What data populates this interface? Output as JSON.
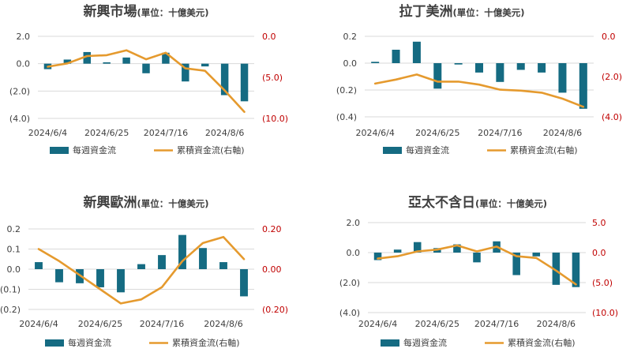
{
  "colors": {
    "bar": "#156b82",
    "line": "#e59a2e",
    "grid": "#d9d9d9",
    "right_axis_text": "#c00000",
    "text": "#404040"
  },
  "chart_data": [
    {
      "type": "bar+line",
      "title": "新興市場",
      "title_unit": "(單位：十億美元)",
      "legend": {
        "bar": "每週資金流",
        "line": "累積資金流(右軸)",
        "placement": "bottom"
      },
      "x_labels": [
        "2024/6/4",
        "2024/6/25",
        "2024/7/16",
        "2024/8/6"
      ],
      "x_label_positions": [
        0,
        3,
        6,
        9
      ],
      "left_ticks": [
        "2.0",
        "0.0",
        "(2.0)",
        "(4.0)"
      ],
      "right_ticks": [
        "0.0",
        "(5.0)",
        "(10.0)"
      ],
      "ylim_left": [
        -4,
        2
      ],
      "ylim_right": [
        -10,
        0
      ],
      "weekly": [
        -0.4,
        0.3,
        0.85,
        0.1,
        0.45,
        -0.7,
        0.8,
        -1.3,
        -0.2,
        -2.3,
        -2.75
      ],
      "cumulative": [
        -3.7,
        -3.3,
        -2.4,
        -2.3,
        -1.7,
        -2.8,
        -2.0,
        -3.9,
        -4.2,
        -6.6,
        -9.2
      ]
    },
    {
      "type": "bar+line",
      "title": "拉丁美洲",
      "title_unit": "(單位：十億美元)",
      "legend": {
        "bar": "每週資金流",
        "line": "累積資金流(右軸)",
        "placement": "bottom"
      },
      "x_labels": [
        "2024/6/4",
        "2024/6/25",
        "2024/7/16",
        "2024/8/6"
      ],
      "x_label_positions": [
        0,
        3,
        6,
        9
      ],
      "left_ticks": [
        "0.2",
        "0.0",
        "(0.2)",
        "(0.4)"
      ],
      "right_ticks": [
        "0.0",
        "(2.0)",
        "(4.0)"
      ],
      "ylim_left": [
        -0.4,
        0.2
      ],
      "ylim_right": [
        -4,
        0
      ],
      "weekly": [
        0.01,
        0.1,
        0.16,
        -0.19,
        -0.01,
        -0.07,
        -0.14,
        -0.05,
        -0.07,
        -0.22,
        -0.34
      ],
      "cumulative": [
        -2.35,
        -2.15,
        -1.9,
        -2.25,
        -2.25,
        -2.4,
        -2.65,
        -2.7,
        -2.8,
        -3.1,
        -3.5
      ]
    },
    {
      "type": "bar+line",
      "title": "新興歐洲",
      "title_unit": "(單位：十億美元)",
      "legend": {
        "bar": "每週資金流",
        "line": "累積資金流(右軸)",
        "placement": "bottom"
      },
      "x_labels": [
        "2024/6/4",
        "2024/6/25",
        "2024/7/16",
        "2024/8/6"
      ],
      "x_label_positions": [
        0,
        3,
        6,
        9
      ],
      "left_ticks": [
        "0.2",
        "0.1",
        "0.0",
        "(0.1)",
        "(0.2)"
      ],
      "right_ticks": [
        "0.20",
        "0.00",
        "(0.20)"
      ],
      "ylim_left": [
        -0.2,
        0.2
      ],
      "ylim_right": [
        -0.2,
        0.2
      ],
      "weekly": [
        0.035,
        -0.065,
        -0.07,
        -0.09,
        -0.115,
        0.025,
        0.07,
        0.17,
        0.105,
        0.035,
        -0.135
      ],
      "cumulative": [
        0.1,
        0.04,
        -0.03,
        -0.1,
        -0.17,
        -0.15,
        -0.09,
        0.04,
        0.13,
        0.16,
        0.05
      ]
    },
    {
      "type": "bar+line",
      "title": "亞太不含日",
      "title_unit": "(單位：十億美元)",
      "legend": {
        "bar": "每週資金流",
        "line": "累積資金流(右軸)",
        "placement": "bottom"
      },
      "x_labels": [
        "2024/6/4",
        "2024/6/25",
        "2024/7/16",
        "2024/8/6"
      ],
      "x_label_positions": [
        0,
        3,
        6,
        9
      ],
      "left_ticks": [
        "2.0",
        "0.0",
        "(2.0)",
        "(4.0)"
      ],
      "right_ticks": [
        "5.0",
        "0.0",
        "(5.0)",
        "(10.0)"
      ],
      "ylim_left": [
        -4,
        2
      ],
      "ylim_right": [
        -10,
        5
      ],
      "weekly": [
        -0.5,
        0.2,
        0.7,
        0.3,
        0.55,
        -0.65,
        0.75,
        -1.5,
        -0.25,
        -2.15,
        -2.3
      ],
      "cumulative": [
        -1.0,
        -0.6,
        0.2,
        0.5,
        1.2,
        0.2,
        1.0,
        -0.6,
        -0.9,
        -3.0,
        -5.3
      ]
    }
  ]
}
